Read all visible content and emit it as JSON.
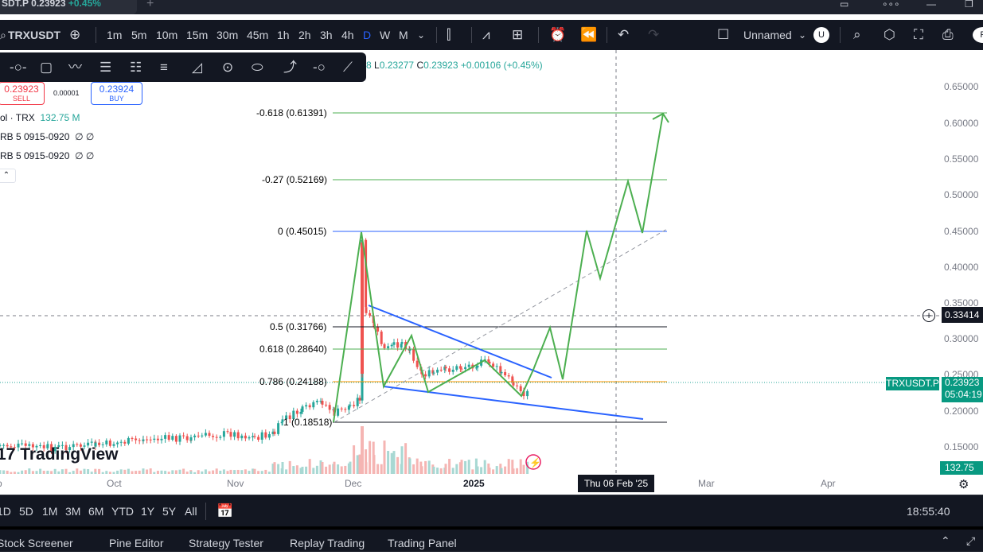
{
  "tab": {
    "title": "SDT.P",
    "price": "0.23923",
    "change": "+0.45%"
  },
  "toolbar": {
    "symbol": "TRXUSDT",
    "timeframes": [
      "1m",
      "5m",
      "10m",
      "15m",
      "30m",
      "45m",
      "1h",
      "2h",
      "3h",
      "4h",
      "D",
      "W",
      "M"
    ],
    "active_timeframe": "D",
    "layout_name": "Unnamed",
    "user_initial": "U"
  },
  "ohlc": {
    "o_tail": "8",
    "l_label": "L",
    "l": "0.23277",
    "c_label": "C",
    "c": "0.23923",
    "change": "+0.00106 (+0.45%)"
  },
  "trade": {
    "sell_price": "0.23923",
    "sell_label": "SELL",
    "spread": "0.00001",
    "buy_price": "0.23924",
    "buy_label": "BUY"
  },
  "legends": [
    {
      "label": "ol · TRX",
      "value": "132.75 M"
    },
    {
      "label": "RB 5 0915-0920",
      "value": "∅ ∅"
    },
    {
      "label": "RB 5 0915-0920",
      "value": "∅ ∅"
    }
  ],
  "price_scale": [
    "0.65000",
    "0.60000",
    "0.55000",
    "0.50000",
    "0.45000",
    "0.40000",
    "0.35000",
    "0.30000",
    "0.25000",
    "0.20000",
    "0.15000"
  ],
  "crosshair_price": "0.33414",
  "last_price": {
    "symbol": "TRXUSDT.P",
    "price": "0.23923",
    "countdown": "05:04:19"
  },
  "volume_tag": "132.75 M",
  "time_axis": [
    "p",
    "Oct",
    "Nov",
    "Dec",
    "2025",
    "Mar",
    "Apr"
  ],
  "crosshair_time": "Thu 06 Feb '25",
  "fib_levels": [
    {
      "label": "-0.618 (0.61391)",
      "color": "#4caf50"
    },
    {
      "label": "-0.27 (0.52169)",
      "color": "#4caf50"
    },
    {
      "label": "0 (0.45015)",
      "color": "#2962ff"
    },
    {
      "label": "0.5 (0.31766)",
      "color": "#131722"
    },
    {
      "label": "0.618 (0.28640)",
      "color": "#4caf50"
    },
    {
      "label": "0.786 (0.24188)",
      "color": "#ff9800"
    },
    {
      "label": "1 (0.18518)",
      "color": "#131722"
    }
  ],
  "logo_text": "TradingView",
  "ranges": [
    "1D",
    "5D",
    "1M",
    "3M",
    "6M",
    "YTD",
    "1Y",
    "5Y",
    "All"
  ],
  "clock": "18:55:40 (UTC)",
  "bottom_tabs": [
    "Stock Screener",
    "Pine Editor",
    "Strategy Tester",
    "Replay Trading",
    "Trading Panel"
  ],
  "colors": {
    "up": "#26a69a",
    "down": "#ef5350",
    "projection": "#4caf50",
    "wedge": "#2962ff",
    "accent": "#2962ff"
  }
}
